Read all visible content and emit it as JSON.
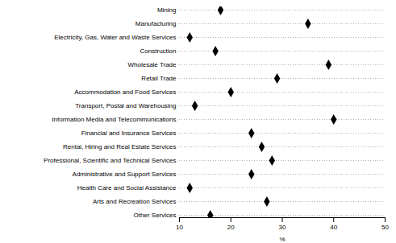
{
  "chart_data": {
    "type": "dot",
    "orientation": "horizontal",
    "categories": [
      "Mining",
      "Manufacturing",
      "Electricity, Gas, Water and Waste Services",
      "Construction",
      "Wholesale Trade",
      "Retail Trade",
      "Accommodation and Food Services",
      "Transport, Postal and Warehousing",
      "Information Media and Telecommunications",
      "Financial and Insurance Services",
      "Rental, Hiring and Real Estate Services",
      "Professional, Scientific and Technical Services",
      "Administrative and Support Services",
      "Health Care and Social Assistance",
      "Arts and Recreation Services",
      "Other Services"
    ],
    "values": [
      18,
      35,
      12,
      17,
      39,
      29,
      20,
      13,
      40,
      24,
      26,
      28,
      24,
      12,
      27,
      16
    ],
    "xlabel": "%",
    "xlim": [
      10,
      50
    ],
    "xticks": [
      10,
      20,
      30,
      40,
      50
    ],
    "grid": true,
    "line_style": "dotted",
    "marker": "diamond",
    "color": "black"
  }
}
